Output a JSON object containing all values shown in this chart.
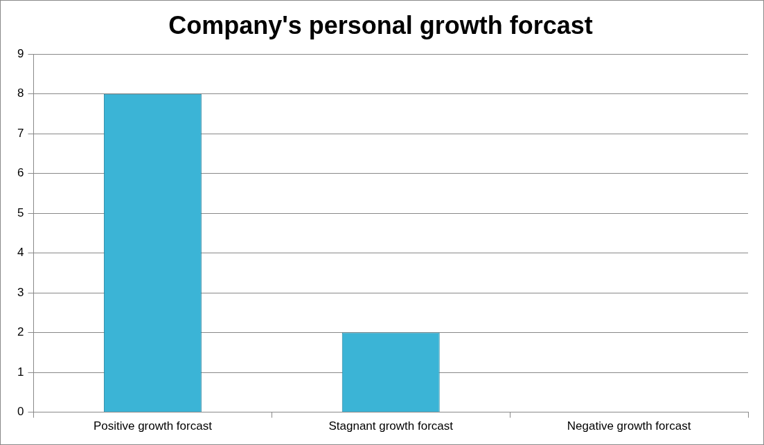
{
  "chart_data": {
    "type": "bar",
    "title": "Company's personal growth forcast",
    "categories": [
      "Positive growth forcast",
      "Stagnant growth forcast",
      "Negative growth forcast"
    ],
    "values": [
      8,
      2,
      0
    ],
    "color": "#3bb4d6",
    "ylim": [
      0,
      9
    ],
    "yticks": [
      0,
      1,
      2,
      3,
      4,
      5,
      6,
      7,
      8,
      9
    ],
    "grid": "y",
    "legend": false
  }
}
